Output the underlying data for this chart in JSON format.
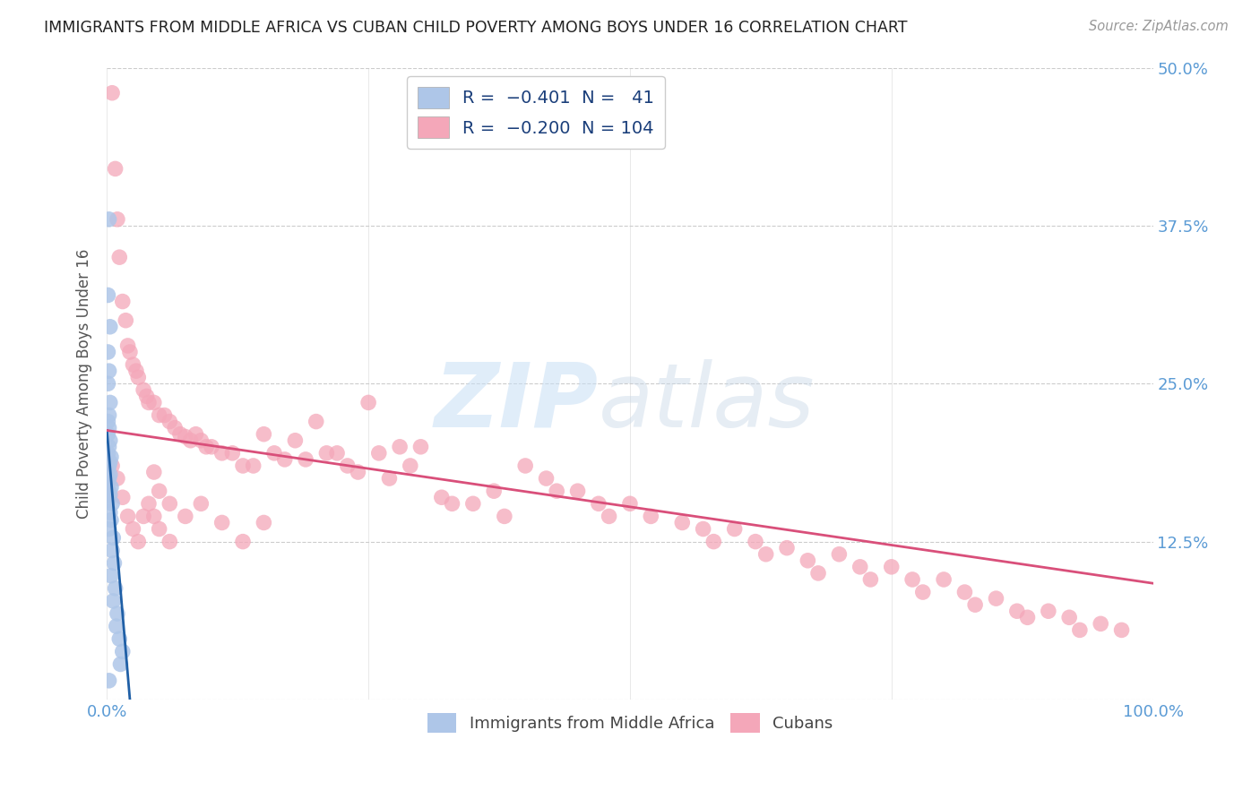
{
  "title": "IMMIGRANTS FROM MIDDLE AFRICA VS CUBAN CHILD POVERTY AMONG BOYS UNDER 16 CORRELATION CHART",
  "source": "Source: ZipAtlas.com",
  "ylabel": "Child Poverty Among Boys Under 16",
  "xlim": [
    0,
    1.0
  ],
  "ylim": [
    0,
    0.5
  ],
  "yticks": [
    0.0,
    0.125,
    0.25,
    0.375,
    0.5
  ],
  "ytick_labels": [
    "",
    "12.5%",
    "25.0%",
    "37.5%",
    "50.0%"
  ],
  "xticks": [
    0.0,
    0.25,
    0.5,
    0.75,
    1.0
  ],
  "xtick_labels": [
    "0.0%",
    "",
    "",
    "",
    "100.0%"
  ],
  "legend_label1": "Immigrants from Middle Africa",
  "legend_label2": "Cubans",
  "blue_color": "#aec6e8",
  "pink_color": "#f4a7b9",
  "blue_line_color": "#1f5fa6",
  "pink_line_color": "#d94f7a",
  "title_color": "#222222",
  "source_color": "#999999",
  "label_color": "#5b9bd5",
  "legend_text_color": "#1a3e7a",
  "blue_line_x": [
    0.0,
    0.022
  ],
  "blue_line_y": [
    0.213,
    0.0
  ],
  "pink_line_x": [
    0.0,
    1.0
  ],
  "pink_line_y": [
    0.213,
    0.092
  ],
  "blue_points_x": [
    0.002,
    0.001,
    0.003,
    0.001,
    0.002,
    0.001,
    0.003,
    0.002,
    0.001,
    0.002,
    0.001,
    0.003,
    0.002,
    0.001,
    0.004,
    0.003,
    0.002,
    0.001,
    0.003,
    0.002,
    0.001,
    0.004,
    0.002,
    0.003,
    0.001,
    0.005,
    0.003,
    0.004,
    0.002,
    0.006,
    0.005,
    0.007,
    0.004,
    0.008,
    0.006,
    0.01,
    0.009,
    0.012,
    0.015,
    0.013,
    0.002
  ],
  "blue_points_y": [
    0.38,
    0.32,
    0.295,
    0.275,
    0.26,
    0.25,
    0.235,
    0.225,
    0.22,
    0.215,
    0.21,
    0.205,
    0.2,
    0.195,
    0.192,
    0.188,
    0.185,
    0.182,
    0.178,
    0.175,
    0.172,
    0.168,
    0.165,
    0.162,
    0.158,
    0.155,
    0.148,
    0.142,
    0.135,
    0.128,
    0.118,
    0.108,
    0.098,
    0.088,
    0.078,
    0.068,
    0.058,
    0.048,
    0.038,
    0.028,
    0.015
  ],
  "pink_points_x": [
    0.005,
    0.008,
    0.01,
    0.012,
    0.015,
    0.018,
    0.02,
    0.022,
    0.025,
    0.028,
    0.03,
    0.035,
    0.038,
    0.04,
    0.045,
    0.05,
    0.055,
    0.06,
    0.065,
    0.07,
    0.075,
    0.08,
    0.085,
    0.09,
    0.095,
    0.1,
    0.11,
    0.12,
    0.13,
    0.14,
    0.15,
    0.16,
    0.17,
    0.18,
    0.19,
    0.2,
    0.21,
    0.22,
    0.23,
    0.24,
    0.25,
    0.26,
    0.27,
    0.28,
    0.29,
    0.3,
    0.32,
    0.33,
    0.35,
    0.37,
    0.38,
    0.4,
    0.42,
    0.43,
    0.45,
    0.47,
    0.48,
    0.5,
    0.52,
    0.55,
    0.57,
    0.58,
    0.6,
    0.62,
    0.63,
    0.65,
    0.67,
    0.68,
    0.7,
    0.72,
    0.73,
    0.75,
    0.77,
    0.78,
    0.8,
    0.82,
    0.83,
    0.85,
    0.87,
    0.88,
    0.9,
    0.92,
    0.93,
    0.95,
    0.97,
    0.005,
    0.01,
    0.015,
    0.02,
    0.025,
    0.03,
    0.035,
    0.04,
    0.045,
    0.05,
    0.06,
    0.075,
    0.09,
    0.11,
    0.13,
    0.15,
    0.045,
    0.05,
    0.06
  ],
  "pink_points_y": [
    0.48,
    0.42,
    0.38,
    0.35,
    0.315,
    0.3,
    0.28,
    0.275,
    0.265,
    0.26,
    0.255,
    0.245,
    0.24,
    0.235,
    0.235,
    0.225,
    0.225,
    0.22,
    0.215,
    0.21,
    0.208,
    0.205,
    0.21,
    0.205,
    0.2,
    0.2,
    0.195,
    0.195,
    0.185,
    0.185,
    0.21,
    0.195,
    0.19,
    0.205,
    0.19,
    0.22,
    0.195,
    0.195,
    0.185,
    0.18,
    0.235,
    0.195,
    0.175,
    0.2,
    0.185,
    0.2,
    0.16,
    0.155,
    0.155,
    0.165,
    0.145,
    0.185,
    0.175,
    0.165,
    0.165,
    0.155,
    0.145,
    0.155,
    0.145,
    0.14,
    0.135,
    0.125,
    0.135,
    0.125,
    0.115,
    0.12,
    0.11,
    0.1,
    0.115,
    0.105,
    0.095,
    0.105,
    0.095,
    0.085,
    0.095,
    0.085,
    0.075,
    0.08,
    0.07,
    0.065,
    0.07,
    0.065,
    0.055,
    0.06,
    0.055,
    0.185,
    0.175,
    0.16,
    0.145,
    0.135,
    0.125,
    0.145,
    0.155,
    0.145,
    0.135,
    0.125,
    0.145,
    0.155,
    0.14,
    0.125,
    0.14,
    0.18,
    0.165,
    0.155
  ]
}
